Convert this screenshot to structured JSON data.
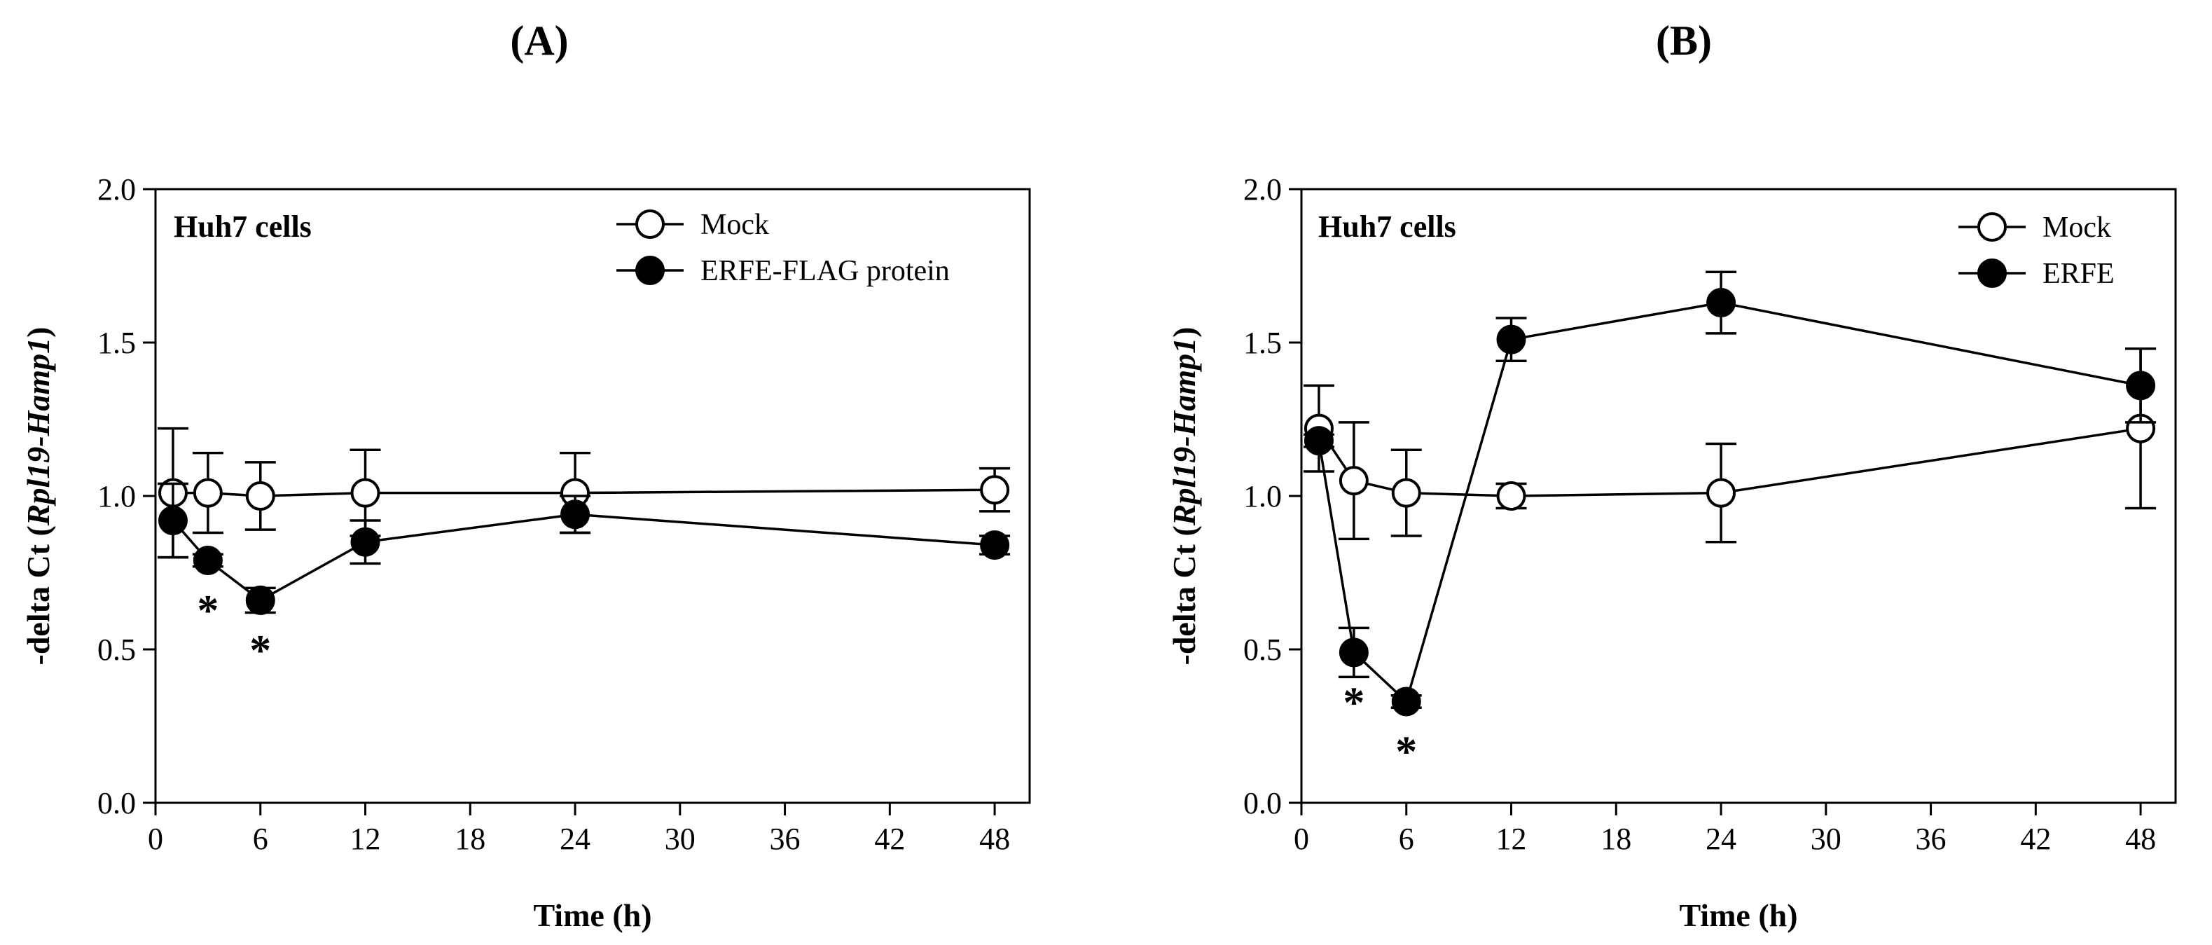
{
  "chart_data": [
    {
      "type": "line",
      "panel_label": "(A)",
      "annotation": "Huh7 cells",
      "xlabel": "Time (h)",
      "ylabel": {
        "prefix": "-delta Ct (",
        "italic": "Rpl19-Hamp1",
        "suffix": ")"
      },
      "xlim": [
        0,
        50
      ],
      "ylim": [
        0,
        2.0
      ],
      "xticks": [
        0,
        6,
        12,
        18,
        24,
        30,
        36,
        42,
        48
      ],
      "xtick_labels": [
        "0",
        "6",
        "12",
        "18",
        "24",
        "30",
        "36",
        "42",
        "48"
      ],
      "yticks": [
        0,
        0.5,
        1.0,
        1.5,
        2.0
      ],
      "ytick_labels": [
        "0.0",
        "0.5",
        "1.0",
        "1.5",
        "2.0"
      ],
      "legend_position": "top-right",
      "series": [
        {
          "name": "Mock",
          "marker": "open-circle",
          "x": [
            1,
            3,
            6,
            12,
            24,
            48
          ],
          "y": [
            1.01,
            1.01,
            1.0,
            1.01,
            1.01,
            1.02
          ],
          "err": [
            0.21,
            0.13,
            0.11,
            0.14,
            0.13,
            0.07
          ]
        },
        {
          "name": "ERFE-FLAG protein",
          "marker": "filled-circle",
          "x": [
            1,
            3,
            6,
            12,
            24,
            48
          ],
          "y": [
            0.92,
            0.79,
            0.66,
            0.85,
            0.94,
            0.84
          ],
          "err": [
            0.12,
            0.02,
            0.04,
            0.07,
            0.06,
            0.03
          ]
        }
      ],
      "significance": [
        {
          "x": 3,
          "label": "*",
          "below_y": 0.79
        },
        {
          "x": 6,
          "label": "*",
          "below_y": 0.66
        }
      ]
    },
    {
      "type": "line",
      "panel_label": "(B)",
      "annotation": "Huh7 cells",
      "xlabel": "Time (h)",
      "ylabel": {
        "prefix": "-delta Ct (",
        "italic": "Rpl19-Hamp1",
        "suffix": ")"
      },
      "xlim": [
        0,
        50
      ],
      "ylim": [
        0,
        2.0
      ],
      "xticks": [
        0,
        6,
        12,
        18,
        24,
        30,
        36,
        42,
        48
      ],
      "xtick_labels": [
        "0",
        "6",
        "12",
        "18",
        "24",
        "30",
        "36",
        "42",
        "48"
      ],
      "yticks": [
        0,
        0.5,
        1.0,
        1.5,
        2.0
      ],
      "ytick_labels": [
        "0.0",
        "0.5",
        "1.0",
        "1.5",
        "2.0"
      ],
      "legend_position": "top-right",
      "series": [
        {
          "name": "Mock",
          "marker": "open-circle",
          "x": [
            1,
            3,
            6,
            12,
            24,
            48
          ],
          "y": [
            1.22,
            1.05,
            1.01,
            1.0,
            1.01,
            1.22
          ],
          "err": [
            0.14,
            0.19,
            0.14,
            0.04,
            0.16,
            0.26
          ]
        },
        {
          "name": "ERFE",
          "marker": "filled-circle",
          "x": [
            1,
            3,
            6,
            12,
            24,
            48
          ],
          "y": [
            1.18,
            0.49,
            0.33,
            1.51,
            1.63,
            1.36
          ],
          "err": [
            0.02,
            0.08,
            0.02,
            0.07,
            0.1,
            0.12
          ]
        }
      ],
      "significance": [
        {
          "x": 3,
          "label": "*",
          "below_y": 0.49
        },
        {
          "x": 6,
          "label": "*",
          "below_y": 0.33
        }
      ]
    }
  ]
}
